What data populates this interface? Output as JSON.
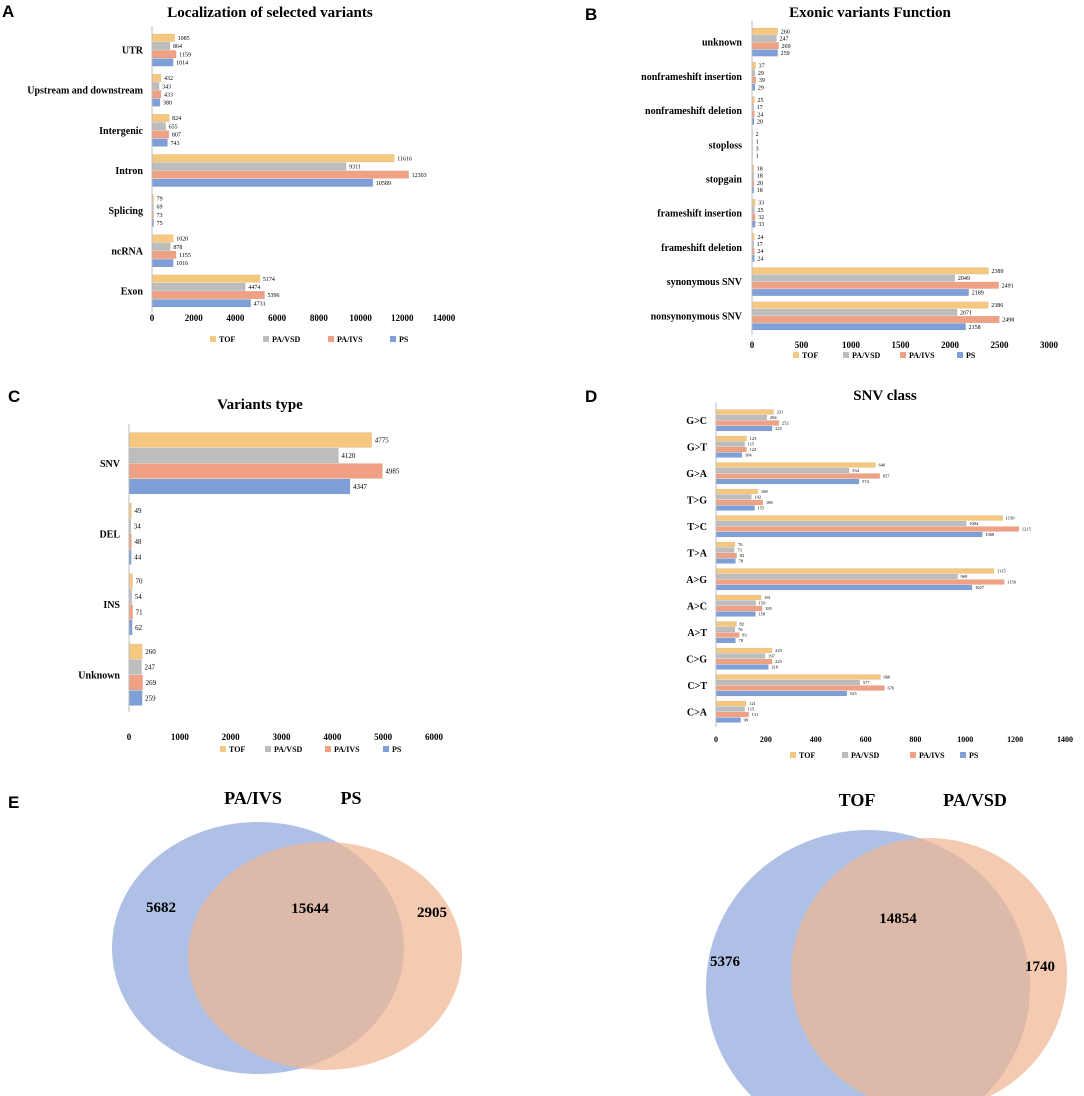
{
  "colors": {
    "TOF": "#f6c87f",
    "PA/VSD": "#bdbdbd",
    "PA/IVS": "#f0a183",
    "PS": "#7e9fd8",
    "venn_blue": "#8fa8dc",
    "venn_orange": "#f0b592"
  },
  "chart_data": [
    {
      "id": "A",
      "letter": "A",
      "type": "bar",
      "orientation": "horizontal",
      "title": "Localization of selected variants",
      "categories": [
        "UTR",
        "Upstream and downstream",
        "Intergenic",
        "Intron",
        "Splicing",
        "ncRNA",
        "Exon"
      ],
      "series": [
        {
          "name": "TOF",
          "values": [
            1085,
            432,
            824,
            11616,
            79,
            1020,
            5174
          ]
        },
        {
          "name": "PA/VSD",
          "values": [
            864,
            343,
            655,
            9311,
            69,
            878,
            4474
          ]
        },
        {
          "name": "PA/IVS",
          "values": [
            1159,
            433,
            807,
            12303,
            73,
            1155,
            5396
          ]
        },
        {
          "name": "PS",
          "values": [
            1014,
            380,
            743,
            10589,
            75,
            1016,
            4731
          ]
        }
      ],
      "xlim": [
        0,
        14000
      ],
      "xticks": [
        0,
        2000,
        4000,
        6000,
        8000,
        10000,
        12000,
        14000
      ],
      "legend": [
        "TOF",
        "PA/VSD",
        "PA/IVS",
        "PS"
      ]
    },
    {
      "id": "B",
      "letter": "B",
      "type": "bar",
      "orientation": "horizontal",
      "title": "Exonic variants Function",
      "categories": [
        "unknown",
        "nonframeshift insertion",
        "nonframeshift deletion",
        "stoploss",
        "stopgain",
        "frameshift insertion",
        "frameshift deletion",
        "synonymous SNV",
        "nonsynonymous SNV"
      ],
      "series": [
        {
          "name": "TOF",
          "values": [
            260,
            37,
            25,
            2,
            18,
            33,
            24,
            2389,
            2386
          ]
        },
        {
          "name": "PA/VSD",
          "values": [
            247,
            29,
            17,
            1,
            18,
            25,
            17,
            2049,
            2071
          ]
        },
        {
          "name": "PA/IVS",
          "values": [
            269,
            39,
            24,
            3,
            20,
            32,
            24,
            2491,
            2498
          ]
        },
        {
          "name": "PS",
          "values": [
            259,
            29,
            20,
            1,
            18,
            33,
            24,
            2189,
            2158
          ]
        }
      ],
      "xlim": [
        0,
        3000
      ],
      "xticks": [
        0,
        500,
        1000,
        1500,
        2000,
        2500,
        3000
      ],
      "legend": [
        "TOF",
        "PA/VSD",
        "PA/IVS",
        "PS"
      ]
    },
    {
      "id": "C",
      "letter": "C",
      "type": "bar",
      "orientation": "horizontal",
      "title": "Variants type",
      "categories": [
        "SNV",
        "DEL",
        "INS",
        "Unknown"
      ],
      "series": [
        {
          "name": "TOF",
          "values": [
            4775,
            49,
            70,
            260
          ]
        },
        {
          "name": "PA/VSD",
          "values": [
            4120,
            34,
            54,
            247
          ]
        },
        {
          "name": "PA/IVS",
          "values": [
            4985,
            48,
            71,
            269
          ]
        },
        {
          "name": "PS",
          "values": [
            4347,
            44,
            62,
            259
          ]
        }
      ],
      "xlim": [
        0,
        6000
      ],
      "xticks": [
        0,
        1000,
        2000,
        3000,
        4000,
        5000,
        6000
      ],
      "legend": [
        "TOF",
        "PA/VSD",
        "PA/IVS",
        "PS"
      ]
    },
    {
      "id": "D",
      "letter": "D",
      "type": "bar",
      "orientation": "horizontal",
      "title": "SNV class",
      "categories": [
        "G>C",
        "G>T",
        "G>A",
        "T>G",
        "T>C",
        "T>A",
        "A>G",
        "A>C",
        "A>T",
        "C>G",
        "C>T",
        "C>A"
      ],
      "series": [
        {
          "name": "TOF",
          "values": [
            231,
            123,
            640,
            168,
            1150,
            76,
            1115,
            181,
            82,
            225,
            660,
            121
          ]
        },
        {
          "name": "PA/VSD",
          "values": [
            204,
            115,
            534,
            142,
            1004,
            73,
            969,
            159,
            76,
            197,
            577,
            115
          ]
        },
        {
          "name": "PA/IVS",
          "values": [
            252,
            122,
            657,
            188,
            1215,
            83,
            1156,
            185,
            93,
            225,
            676,
            131
          ]
        },
        {
          "name": "PS",
          "values": [
            225,
            104,
            574,
            155,
            1068,
            78,
            1027,
            158,
            78,
            210,
            525,
            99
          ]
        }
      ],
      "xlim": [
        0,
        1400
      ],
      "xticks": [
        0,
        200,
        400,
        600,
        800,
        1000,
        1200,
        1400
      ],
      "legend": [
        "TOF",
        "PA/VSD",
        "PA/IVS",
        "PS"
      ]
    },
    {
      "id": "E",
      "letter": "E",
      "type": "venn",
      "diagrams": [
        {
          "labels": [
            "PA/IVS",
            "PS"
          ],
          "left_only": 5682,
          "both": 15644,
          "right_only": 2905
        },
        {
          "labels": [
            "TOF",
            "PA/VSD"
          ],
          "left_only": 5376,
          "both": 14854,
          "right_only": 1740
        }
      ]
    }
  ]
}
